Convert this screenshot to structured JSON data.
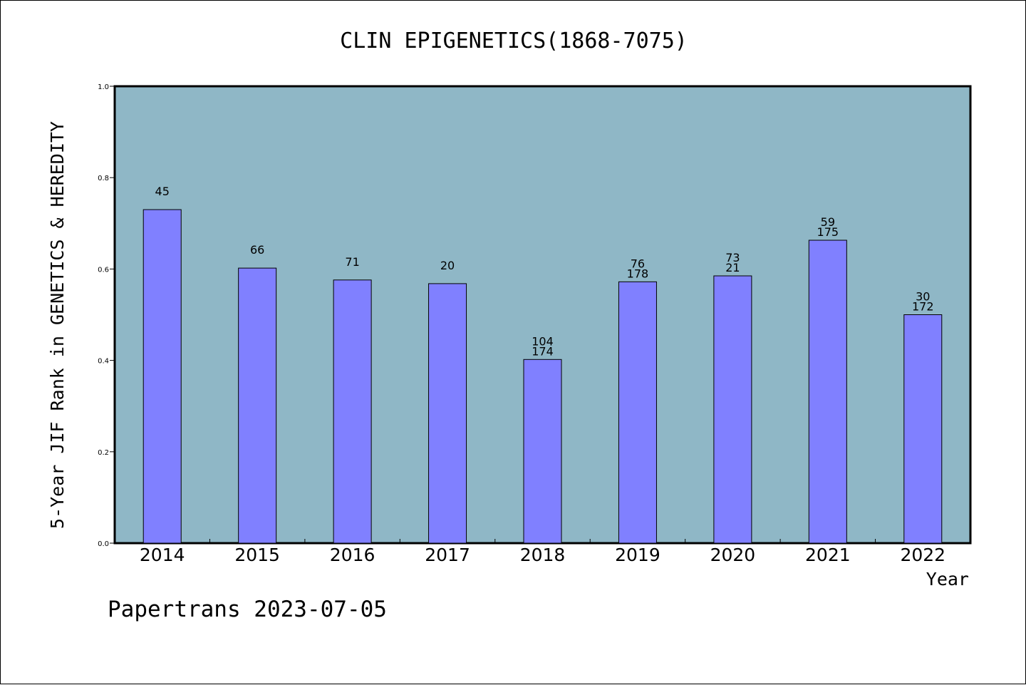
{
  "footer": {
    "text": "Papertrans 2023-07-05"
  },
  "colors": {
    "plot_background": "#8fb7c6",
    "bar_fill": "#8080ff",
    "frame": "#000000"
  },
  "chart_data": {
    "type": "bar",
    "title": "CLIN EPIGENETICS(1868-7075)",
    "xlabel": "Year",
    "ylabel": "5-Year JIF Rank in GENETICS & HEREDITY",
    "ylim": [
      0,
      1.0
    ],
    "yticks": [
      "0.0",
      "0.2",
      "0.4",
      "0.6",
      "0.8",
      "1.0"
    ],
    "grid": false,
    "categories": [
      "2014",
      "2015",
      "2016",
      "2017",
      "2018",
      "2019",
      "2020",
      "2021",
      "2022"
    ],
    "values": [
      0.73,
      0.602,
      0.576,
      0.568,
      0.402,
      0.572,
      0.585,
      0.663,
      0.5
    ],
    "bar_labels": [
      [
        "45"
      ],
      [
        "66"
      ],
      [
        "71"
      ],
      [
        "20"
      ],
      [
        "104",
        "174"
      ],
      [
        "76",
        "178"
      ],
      [
        "73",
        "21"
      ],
      [
        "59",
        "175"
      ],
      [
        "30",
        "172"
      ]
    ]
  }
}
